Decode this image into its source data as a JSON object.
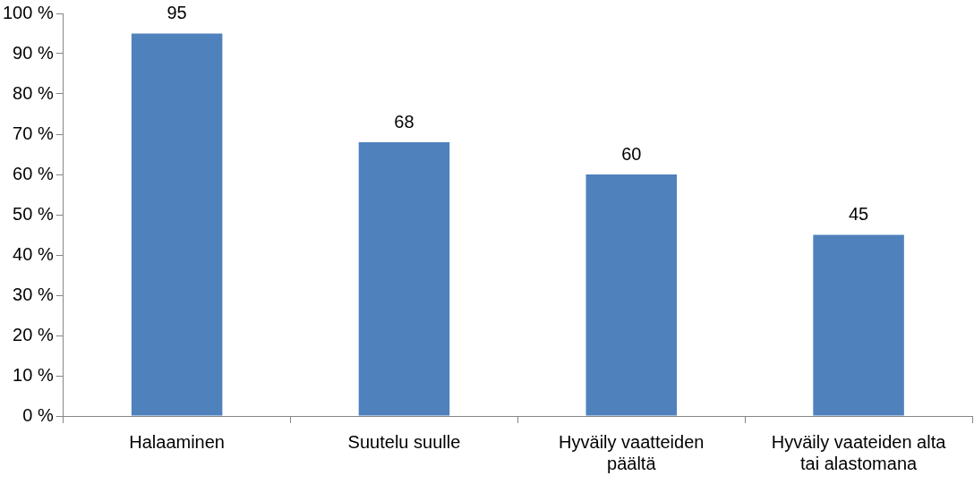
{
  "chart_data": {
    "type": "bar",
    "categories": [
      "Halaaminen",
      "Suutelu suulle",
      "Hyväily vaatteiden päältä",
      "Hyväily vaateiden alta tai alastomana"
    ],
    "values": [
      95,
      68,
      60,
      45
    ],
    "color": "#4f81bd",
    "ylim": [
      0,
      100
    ],
    "yticks": [
      {
        "value": 0,
        "label": "0 %"
      },
      {
        "value": 10,
        "label": "10 %"
      },
      {
        "value": 20,
        "label": "20 %"
      },
      {
        "value": 30,
        "label": "30 %"
      },
      {
        "value": 40,
        "label": "40 %"
      },
      {
        "value": 50,
        "label": "50 %"
      },
      {
        "value": 60,
        "label": "60 %"
      },
      {
        "value": 70,
        "label": "70 %"
      },
      {
        "value": 80,
        "label": "80 %"
      },
      {
        "value": 90,
        "label": "90 %"
      },
      {
        "value": 100,
        "label": "100 %"
      }
    ],
    "data_labels": true,
    "grid": false,
    "legend": false
  }
}
